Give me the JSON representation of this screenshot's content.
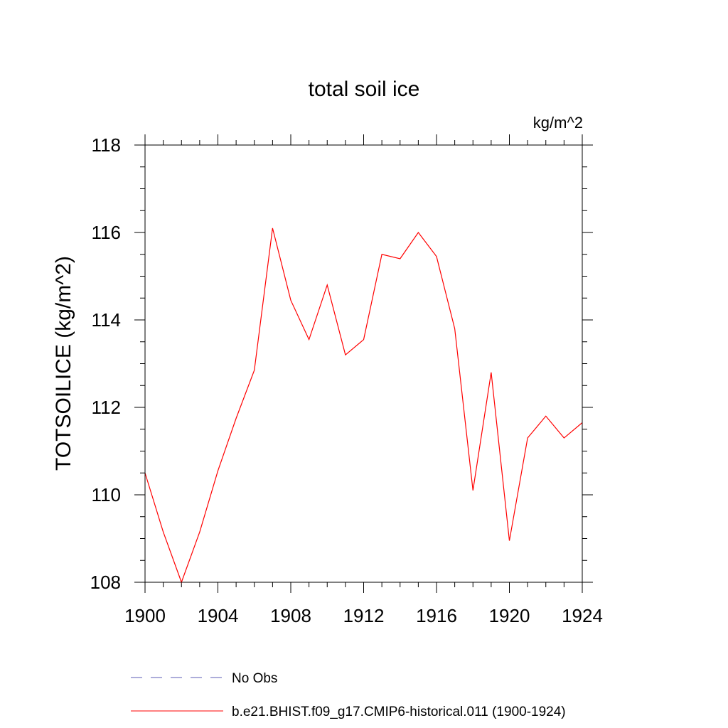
{
  "chart_data": {
    "type": "line",
    "title": "total soil ice",
    "units_label": "kg/m^2",
    "ylabel": "TOTSOILICE  (kg/m^2)",
    "xlabel": "",
    "xlim": [
      1900,
      1924
    ],
    "ylim": [
      108,
      118
    ],
    "x_major_ticks": [
      1900,
      1904,
      1908,
      1912,
      1916,
      1920,
      1924
    ],
    "x_tick_labels": [
      "1900",
      "1904",
      "1908",
      "1912",
      "1916",
      "1920",
      "1924"
    ],
    "x_minor_step": 1,
    "y_major_ticks": [
      108,
      110,
      112,
      114,
      116,
      118
    ],
    "y_tick_labels": [
      "108",
      "110",
      "112",
      "114",
      "116",
      "118"
    ],
    "y_minor_step": 0.5,
    "grid": false,
    "legend_placement": "bottom",
    "series": [
      {
        "name": "b.e21.BHIST.f09_g17.CMIP6-historical.011 (1900-1924)",
        "color": "#ff0000",
        "dash": "solid",
        "x": [
          1900,
          1901,
          1902,
          1903,
          1904,
          1905,
          1906,
          1907,
          1908,
          1909,
          1910,
          1911,
          1912,
          1913,
          1914,
          1915,
          1916,
          1917,
          1918,
          1919,
          1920,
          1921,
          1922,
          1923,
          1924
        ],
        "values": [
          110.5,
          109.15,
          108.0,
          109.15,
          110.55,
          111.75,
          112.85,
          116.1,
          114.45,
          113.55,
          114.8,
          113.2,
          113.55,
          115.5,
          115.4,
          116.0,
          115.45,
          113.8,
          110.1,
          112.8,
          108.95,
          111.3,
          111.8,
          111.3,
          111.65
        ]
      }
    ],
    "legend": [
      {
        "label": "No Obs",
        "color": "#5b5bb5",
        "dash": "dashed"
      },
      {
        "label": "b.e21.BHIST.f09_g17.CMIP6-historical.011 (1900-1924)",
        "color": "#ff0000",
        "dash": "solid"
      }
    ]
  }
}
